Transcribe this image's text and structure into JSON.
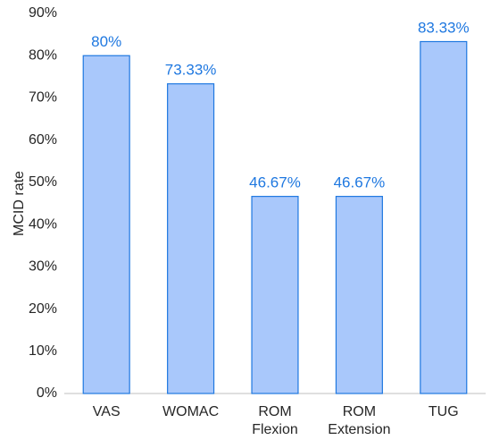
{
  "chart_data": {
    "type": "bar",
    "title": "",
    "xlabel": "",
    "ylabel": "MCID rate",
    "categories": [
      [
        "VAS"
      ],
      [
        "WOMAC"
      ],
      [
        "ROM",
        "Flexion"
      ],
      [
        "ROM",
        "Extension"
      ],
      [
        "TUG"
      ]
    ],
    "values": [
      80,
      73.33,
      46.67,
      46.67,
      83.33
    ],
    "data_labels": [
      "80%",
      "73.33%",
      "46.67%",
      "46.67%",
      "83.33%"
    ],
    "ylim": [
      0,
      90
    ],
    "yticks": [
      0,
      10,
      20,
      30,
      40,
      50,
      60,
      70,
      80,
      90
    ],
    "ytick_labels": [
      "0%",
      "10%",
      "20%",
      "30%",
      "40%",
      "50%",
      "60%",
      "70%",
      "80%",
      "90%"
    ],
    "grid": false,
    "legend": "none",
    "colors": {
      "bar_fill": "#a9c8fb",
      "bar_stroke": "#1f78e0",
      "data_label": "#1f78e0",
      "axis": "#bfbfbf",
      "text": "#262626"
    }
  }
}
